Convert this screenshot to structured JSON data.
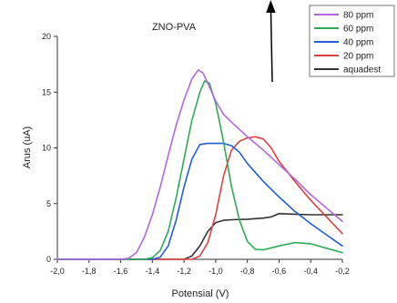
{
  "chart_data": {
    "type": "line",
    "title": "ZNO-PVA",
    "xlabel": "Potensial (V)",
    "ylabel": "Arus (uA)",
    "xlim": [
      -2.0,
      -0.2
    ],
    "ylim": [
      0,
      20
    ],
    "x_ticks": [
      "-2,0",
      "-1,8",
      "-1,6",
      "-1,4",
      "-1,2",
      "-1,0",
      "-0,8",
      "-0,6",
      "-0,4",
      "-0,2"
    ],
    "y_ticks": [
      "0",
      "5",
      "10",
      "15",
      "20"
    ],
    "legend_position": "top-right",
    "series": [
      {
        "name": "80 ppm",
        "color": "#b266e0",
        "points": [
          [
            -2.0,
            0
          ],
          [
            -1.6,
            0
          ],
          [
            -1.55,
            0.1
          ],
          [
            -1.5,
            0.6
          ],
          [
            -1.45,
            2.0
          ],
          [
            -1.4,
            4.0
          ],
          [
            -1.35,
            6.5
          ],
          [
            -1.3,
            9.3
          ],
          [
            -1.25,
            12.0
          ],
          [
            -1.2,
            14.3
          ],
          [
            -1.15,
            16.2
          ],
          [
            -1.11,
            17.0
          ],
          [
            -1.08,
            16.7
          ],
          [
            -1.05,
            15.8
          ],
          [
            -1.0,
            14.2
          ],
          [
            -0.95,
            13.0
          ],
          [
            -0.9,
            12.3
          ],
          [
            -0.8,
            11.0
          ],
          [
            -0.7,
            9.8
          ],
          [
            -0.6,
            8.5
          ],
          [
            -0.5,
            7.2
          ],
          [
            -0.4,
            5.8
          ],
          [
            -0.3,
            4.6
          ],
          [
            -0.2,
            3.4
          ]
        ]
      },
      {
        "name": "60 ppm",
        "color": "#2eaa55",
        "points": [
          [
            -2.0,
            0
          ],
          [
            -1.45,
            0
          ],
          [
            -1.4,
            0.15
          ],
          [
            -1.35,
            0.8
          ],
          [
            -1.3,
            2.5
          ],
          [
            -1.25,
            5.5
          ],
          [
            -1.2,
            9.0
          ],
          [
            -1.15,
            12.5
          ],
          [
            -1.1,
            15.0
          ],
          [
            -1.07,
            16.0
          ],
          [
            -1.04,
            15.8
          ],
          [
            -1.0,
            14.0
          ],
          [
            -0.95,
            10.5
          ],
          [
            -0.9,
            6.5
          ],
          [
            -0.85,
            3.5
          ],
          [
            -0.8,
            1.6
          ],
          [
            -0.75,
            0.9
          ],
          [
            -0.7,
            0.85
          ],
          [
            -0.6,
            1.2
          ],
          [
            -0.5,
            1.5
          ],
          [
            -0.4,
            1.4
          ],
          [
            -0.3,
            1.0
          ],
          [
            -0.2,
            0.6
          ]
        ]
      },
      {
        "name": "40 ppm",
        "color": "#1f5fd6",
        "points": [
          [
            -2.0,
            0
          ],
          [
            -1.4,
            0
          ],
          [
            -1.35,
            0.2
          ],
          [
            -1.3,
            1.2
          ],
          [
            -1.25,
            3.5
          ],
          [
            -1.2,
            6.5
          ],
          [
            -1.15,
            9.0
          ],
          [
            -1.1,
            10.3
          ],
          [
            -1.05,
            10.4
          ],
          [
            -1.0,
            10.4
          ],
          [
            -0.95,
            10.4
          ],
          [
            -0.9,
            10.2
          ],
          [
            -0.85,
            9.6
          ],
          [
            -0.8,
            8.6
          ],
          [
            -0.7,
            7.0
          ],
          [
            -0.6,
            5.6
          ],
          [
            -0.5,
            4.3
          ],
          [
            -0.4,
            3.2
          ],
          [
            -0.3,
            2.2
          ],
          [
            -0.2,
            1.2
          ]
        ]
      },
      {
        "name": "20 ppm",
        "color": "#e04040",
        "points": [
          [
            -2.0,
            0
          ],
          [
            -1.15,
            0
          ],
          [
            -1.1,
            0.3
          ],
          [
            -1.05,
            1.5
          ],
          [
            -1.0,
            4.0
          ],
          [
            -0.95,
            7.5
          ],
          [
            -0.9,
            9.8
          ],
          [
            -0.85,
            10.6
          ],
          [
            -0.8,
            10.9
          ],
          [
            -0.75,
            11.0
          ],
          [
            -0.7,
            10.8
          ],
          [
            -0.65,
            10.0
          ],
          [
            -0.6,
            8.8
          ],
          [
            -0.5,
            7.0
          ],
          [
            -0.4,
            5.3
          ],
          [
            -0.3,
            3.8
          ],
          [
            -0.2,
            2.3
          ]
        ]
      },
      {
        "name": "aquadest",
        "color": "#333333",
        "points": [
          [
            -2.0,
            0
          ],
          [
            -1.2,
            0
          ],
          [
            -1.15,
            0.3
          ],
          [
            -1.1,
            1.2
          ],
          [
            -1.05,
            2.5
          ],
          [
            -1.0,
            3.3
          ],
          [
            -0.95,
            3.5
          ],
          [
            -0.9,
            3.55
          ],
          [
            -0.8,
            3.6
          ],
          [
            -0.7,
            3.7
          ],
          [
            -0.65,
            3.8
          ],
          [
            -0.6,
            4.1
          ],
          [
            -0.5,
            4.05
          ],
          [
            -0.4,
            4.0
          ],
          [
            -0.3,
            4.0
          ],
          [
            -0.2,
            4.0
          ]
        ]
      }
    ]
  }
}
